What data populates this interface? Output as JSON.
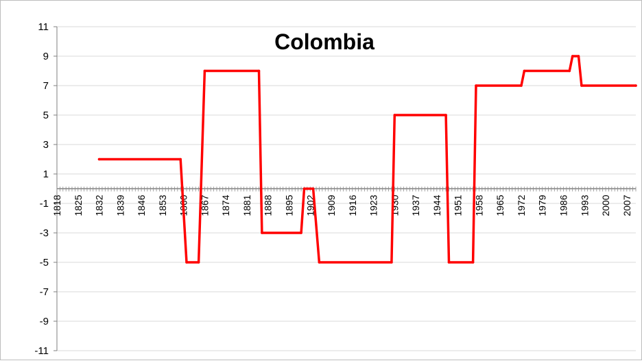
{
  "chart_data": {
    "type": "line",
    "title": "Colombia",
    "xlabel": "",
    "ylabel": "",
    "xlim": [
      1818,
      2010
    ],
    "ylim": [
      -11,
      11
    ],
    "y_ticks": [
      11,
      9,
      7,
      5,
      3,
      1,
      -1,
      -3,
      -5,
      -7,
      -9,
      -11
    ],
    "x_tick_labels": [
      "1818",
      "1825",
      "1832",
      "1839",
      "1846",
      "1853",
      "1860",
      "1867",
      "1874",
      "1881",
      "1888",
      "1895",
      "1902",
      "1909",
      "1916",
      "1923",
      "1930",
      "1937",
      "1944",
      "1951",
      "1958",
      "1965",
      "1972",
      "1979",
      "1986",
      "1993",
      "2000",
      "2007"
    ],
    "grid": "horizontal",
    "legend": "none",
    "series": [
      {
        "color": "#ff0000",
        "x": [
          1832,
          1859,
          1861,
          1865,
          1867,
          1885,
          1886,
          1899,
          1900,
          1903,
          1905,
          1929,
          1930,
          1947,
          1948,
          1956,
          1957,
          1972,
          1973,
          1988,
          1989,
          1991,
          1992,
          2010
        ],
        "y": [
          2,
          2,
          -5,
          -5,
          8,
          8,
          -3,
          -3,
          0,
          0,
          -5,
          -5,
          5,
          5,
          -5,
          -5,
          7,
          7,
          8,
          8,
          9,
          9,
          7,
          7
        ]
      }
    ]
  }
}
